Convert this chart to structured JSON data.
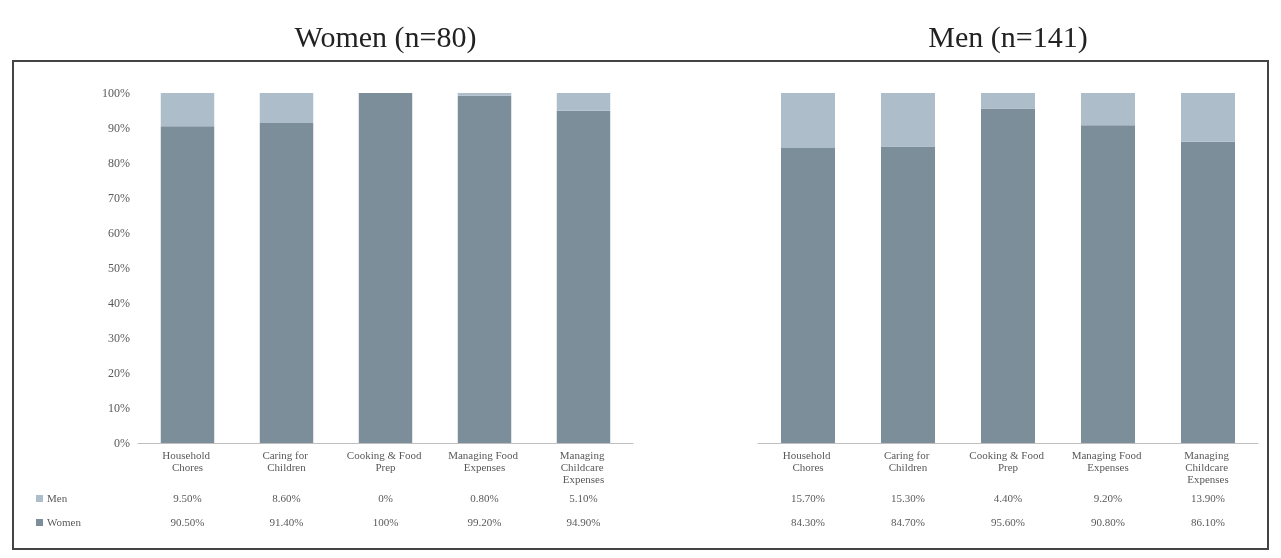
{
  "chart_data": [
    {
      "type": "bar",
      "title": "Women (n=80)",
      "stacked": true,
      "categories": [
        "Household Chores",
        "Caring for Children",
        "Cooking & Food Prep",
        "Managing Food Expenses",
        "Managing Childcare Expenses"
      ],
      "series": [
        {
          "name": "Women",
          "color": "#7d8e9b",
          "values": [
            90.5,
            91.4,
            100,
            99.2,
            94.9
          ],
          "value_labels": [
            "90.50%",
            "91.40%",
            "100%",
            "99.20%",
            "94.90%"
          ]
        },
        {
          "name": "Men",
          "color": "#aebdca",
          "values": [
            9.5,
            8.6,
            0,
            0.8,
            5.1
          ],
          "value_labels": [
            "9.50%",
            "8.60%",
            "0%",
            "0.80%",
            "5.10%"
          ]
        }
      ],
      "ylim": [
        0,
        100
      ],
      "yticks": [
        {
          "value": 0,
          "label": "0%"
        },
        {
          "value": 10,
          "label": "10%"
        },
        {
          "value": 20,
          "label": "20%"
        },
        {
          "value": 30,
          "label": "30%"
        },
        {
          "value": 40,
          "label": "40%"
        },
        {
          "value": 50,
          "label": "50%"
        },
        {
          "value": 60,
          "label": "60%"
        },
        {
          "value": 70,
          "label": "70%"
        },
        {
          "value": 80,
          "label": "80%"
        },
        {
          "value": 90,
          "label": "90%"
        },
        {
          "value": 100,
          "label": "100%"
        }
      ],
      "grid": false,
      "legend": "bottom left"
    },
    {
      "type": "bar",
      "title": "Men (n=141)",
      "stacked": true,
      "categories": [
        "Household Chores",
        "Caring for Children",
        "Cooking & Food Prep",
        "Managing Food Expenses",
        "Managing Childcare Expenses"
      ],
      "series": [
        {
          "color": "#7d8e9b",
          "values": [
            84.3,
            84.7,
            95.6,
            90.8,
            86.1
          ],
          "value_labels": [
            "84.30%",
            "84.70%",
            "95.60%",
            "90.80%",
            "86.10%"
          ]
        },
        {
          "color": "#aebdca",
          "values": [
            15.7,
            15.3,
            4.4,
            9.2,
            13.9
          ],
          "value_labels": [
            "15.70%",
            "15.30%",
            "4.40%",
            "9.20%",
            "13.90%"
          ]
        }
      ],
      "ylim": [
        0,
        100
      ],
      "grid": false,
      "tick_labels": "x",
      "legend": false
    }
  ]
}
